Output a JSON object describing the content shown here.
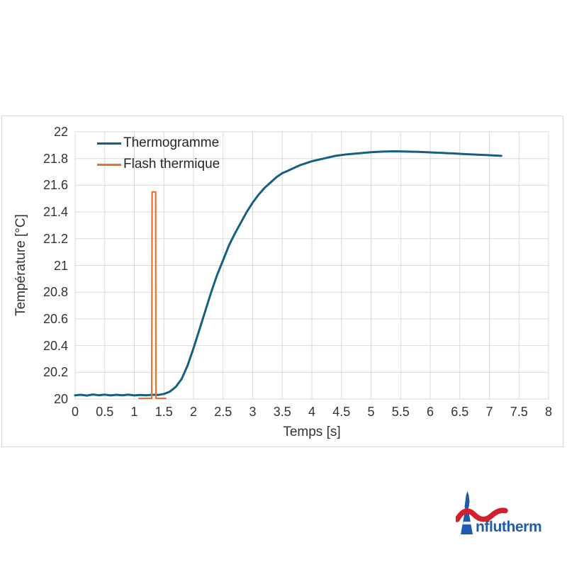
{
  "chart": {
    "legend": {
      "items": [
        "Thermogramme",
        "Flash thermique"
      ]
    },
    "x_axis": {
      "title": "Temps [s]",
      "ticks": [
        "0",
        "0.5",
        "1",
        "1.5",
        "2",
        "2.5",
        "3",
        "3.5",
        "4",
        "4.5",
        "5",
        "5.5",
        "6",
        "6.5",
        "7",
        "7.5",
        "8"
      ]
    },
    "y_axis": {
      "title": "Température [°C]",
      "ticks": [
        "22",
        "21.8",
        "21.6",
        "21.4",
        "21.2",
        "21",
        "20.8",
        "20.6",
        "20.4",
        "20.2",
        "20"
      ]
    },
    "colors": {
      "grid": "#d9d9d9",
      "frame_border": "#d9d9d9",
      "text": "#333333"
    }
  },
  "chart_data": {
    "type": "line",
    "title": "",
    "xlabel": "Temps [s]",
    "ylabel": "Température [°C]",
    "xlim": [
      0,
      8
    ],
    "ylim": [
      20,
      22
    ],
    "x_tick_step": 0.5,
    "y_tick_step": 0.2,
    "grid": true,
    "legend_position": "top-left inside plot area",
    "series": [
      {
        "name": "Thermogramme",
        "color": "#156082",
        "line_width": 3,
        "points": [
          [
            0,
            20.028
          ],
          [
            0.1,
            20.032
          ],
          [
            0.2,
            20.026
          ],
          [
            0.3,
            20.034
          ],
          [
            0.4,
            20.028
          ],
          [
            0.5,
            20.033
          ],
          [
            0.6,
            20.027
          ],
          [
            0.7,
            20.032
          ],
          [
            0.8,
            20.028
          ],
          [
            0.9,
            20.033
          ],
          [
            1.0,
            20.027
          ],
          [
            1.1,
            20.03
          ],
          [
            1.2,
            20.028
          ],
          [
            1.3,
            20.032
          ],
          [
            1.4,
            20.03
          ],
          [
            1.5,
            20.038
          ],
          [
            1.6,
            20.055
          ],
          [
            1.7,
            20.09
          ],
          [
            1.8,
            20.15
          ],
          [
            1.9,
            20.25
          ],
          [
            2.0,
            20.38
          ],
          [
            2.1,
            20.52
          ],
          [
            2.2,
            20.66
          ],
          [
            2.3,
            20.8
          ],
          [
            2.4,
            20.93
          ],
          [
            2.5,
            21.04
          ],
          [
            2.6,
            21.15
          ],
          [
            2.7,
            21.24
          ],
          [
            2.8,
            21.32
          ],
          [
            2.9,
            21.4
          ],
          [
            3.0,
            21.47
          ],
          [
            3.1,
            21.53
          ],
          [
            3.2,
            21.58
          ],
          [
            3.3,
            21.62
          ],
          [
            3.4,
            21.66
          ],
          [
            3.5,
            21.69
          ],
          [
            3.6,
            21.71
          ],
          [
            3.7,
            21.73
          ],
          [
            3.8,
            21.75
          ],
          [
            3.9,
            21.765
          ],
          [
            4.0,
            21.78
          ],
          [
            4.2,
            21.8
          ],
          [
            4.4,
            21.82
          ],
          [
            4.6,
            21.832
          ],
          [
            4.8,
            21.84
          ],
          [
            5.0,
            21.847
          ],
          [
            5.2,
            21.852
          ],
          [
            5.4,
            21.854
          ],
          [
            5.6,
            21.852
          ],
          [
            5.8,
            21.85
          ],
          [
            6.0,
            21.846
          ],
          [
            6.2,
            21.842
          ],
          [
            6.4,
            21.838
          ],
          [
            6.6,
            21.833
          ],
          [
            6.8,
            21.829
          ],
          [
            7.0,
            21.825
          ],
          [
            7.2,
            21.82
          ]
        ]
      },
      {
        "name": "Flash thermique",
        "color": "#e97132",
        "line_width": 2.2,
        "points": [
          [
            1.08,
            20.005
          ],
          [
            1.295,
            20.005
          ],
          [
            1.3,
            21.55
          ],
          [
            1.36,
            21.55
          ],
          [
            1.365,
            20.005
          ],
          [
            1.53,
            20.005
          ]
        ]
      }
    ]
  },
  "logo": {
    "brand": "Influtherm",
    "wordmark_text": "nflutherm",
    "text_color": "#1f5ba8",
    "tower_color": "#1f5ba8",
    "wave_color": "#d3202b"
  }
}
